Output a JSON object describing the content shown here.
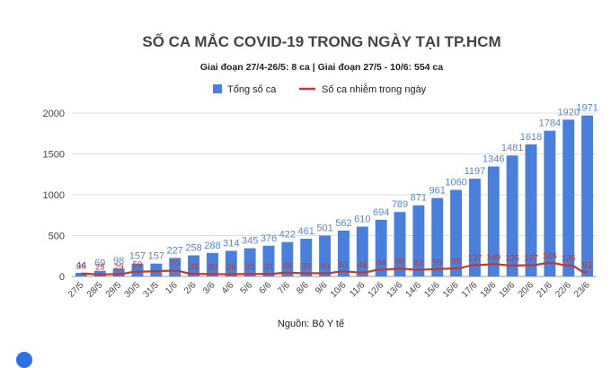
{
  "chart_data": {
    "type": "bar",
    "title": "SỐ CA MẮC COVID-19 TRONG NGÀY TẠI TP.HCM",
    "subtitle": "Giai đoạn 27/4-26/5: 8 ca  | Giai đoạn 27/5 - 10/6: 554 ca",
    "source": "Nguồn: Bộ Y tế",
    "legend_position": "top-center",
    "grid": true,
    "ylim": [
      0,
      2000
    ],
    "yticks": [
      0,
      500,
      1000,
      1500,
      2000
    ],
    "categories": [
      "27/5",
      "28/5",
      "29/5",
      "30/5",
      "31/5",
      "1/6",
      "2/6",
      "3/6",
      "4/6",
      "5/6",
      "6/6",
      "7/6",
      "8/6",
      "9/6",
      "10/6",
      "11/6",
      "12/6",
      "13/6",
      "14/6",
      "15/6",
      "16/6",
      "17/6",
      "18/6",
      "19/6",
      "20/6",
      "21/6",
      "22/6",
      "23/6"
    ],
    "series": [
      {
        "name": "Tổng số ca",
        "type": "bar",
        "color": "#4a7fdc",
        "values": [
          44,
          69,
          98,
          157,
          157,
          227,
          258,
          288,
          314,
          345,
          376,
          422,
          461,
          501,
          562,
          610,
          694,
          789,
          871,
          961,
          1060,
          1197,
          1346,
          1481,
          1618,
          1784,
          1920,
          1971
        ]
      },
      {
        "name": "Số ca nhiễm trong ngày",
        "type": "line",
        "color": "#c0392b",
        "values": [
          36,
          25,
          29,
          59,
          null,
          70,
          31,
          30,
          26,
          31,
          31,
          46,
          39,
          40,
          61,
          48,
          84,
          95,
          82,
          90,
          99,
          137,
          149,
          135,
          137,
          166,
          136,
          51
        ]
      }
    ]
  }
}
